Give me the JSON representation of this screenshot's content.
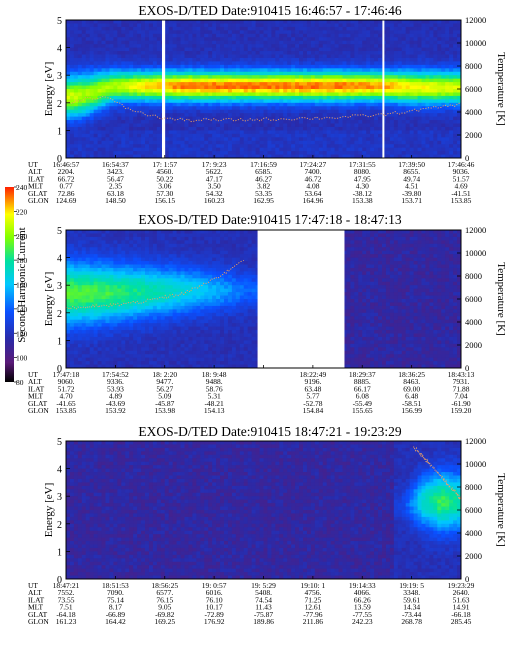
{
  "chart_data": [
    {
      "type": "heatmap",
      "title": "EXOS-D/TED   Date:910415  16:46:57 - 17:46:46",
      "ylabel": "Energy [eV]",
      "y2label": "Temperature [K]",
      "ylim": [
        0,
        5
      ],
      "y2lim": [
        0,
        12000
      ],
      "yticks": [
        "0",
        "1",
        "2",
        "3",
        "4",
        "5"
      ],
      "y2ticks": [
        "0",
        "2000",
        "4000",
        "6000",
        "8000",
        "10000",
        "12000"
      ],
      "data_gaps_fraction": [
        [
          0.243,
          0.251
        ],
        [
          0.801,
          0.806
        ]
      ],
      "band": {
        "x": [
          0,
          0.05,
          0.12,
          0.2,
          0.3,
          0.5,
          0.7,
          0.8,
          0.9,
          1.0
        ],
        "center_eV": [
          2.2,
          2.3,
          2.6,
          2.6,
          2.6,
          2.6,
          2.6,
          2.6,
          2.55,
          2.55
        ],
        "width_eV": [
          0.7,
          0.7,
          0.55,
          0.5,
          0.5,
          0.5,
          0.5,
          0.5,
          0.55,
          0.55
        ],
        "intensity": [
          0.82,
          0.78,
          0.78,
          0.88,
          0.95,
          0.95,
          0.95,
          0.92,
          0.85,
          0.82
        ]
      },
      "temperature_K": {
        "x": [
          0,
          0.05,
          0.1,
          0.15,
          0.2,
          0.25,
          0.3,
          0.4,
          0.5,
          0.6,
          0.7,
          0.8,
          0.9,
          1.0
        ],
        "y": [
          4700,
          5200,
          5300,
          4400,
          3800,
          3450,
          3300,
          3300,
          3350,
          3450,
          3550,
          3750,
          4200,
          4700
        ]
      },
      "orbit": {
        "rows": [
          {
            "label": "UT",
            "values": [
              "16:46:57",
              "16:54:37",
              "17: 1:57",
              "17: 9:23",
              "17:16:59",
              "17:24:27",
              "17:31:55",
              "17:39:50",
              "17:46:46"
            ]
          },
          {
            "label": "ALT",
            "values": [
              "2204.",
              "3423.",
              "4560.",
              "5622.",
              "6585.",
              "7400.",
              "8080.",
              "8655.",
              "9036."
            ]
          },
          {
            "label": "ILAT",
            "values": [
              "66.72",
              "56.47",
              "50.22",
              "47.17",
              "46.27",
              "46.72",
              "47.95",
              "49.74",
              "51.57"
            ]
          },
          {
            "label": "MLT",
            "values": [
              "0.77",
              "2.35",
              "3.06",
              "3.50",
              "3.82",
              "4.08",
              "4.30",
              "4.51",
              "4.69"
            ]
          },
          {
            "label": "GLAT",
            "values": [
              "72.86",
              "63.18",
              "57.30",
              "54.32",
              "53.35",
              "53.64",
              "-38.12",
              "-39.80",
              "-41.51"
            ]
          },
          {
            "label": "GLON",
            "values": [
              "124.69",
              "148.50",
              "156.15",
              "160.23",
              "162.95",
              "164.96",
              "153.38",
              "153.71",
              "153.85"
            ]
          }
        ]
      }
    },
    {
      "type": "heatmap",
      "title": "EXOS-D/TED   Date:910415  17:47:18 - 18:47:13",
      "ylabel": "Energy [eV]",
      "y2label": "Temperature [K]",
      "colorbar_label": "Second Harmonic Current",
      "colorbar_ticks": [
        "80",
        "100",
        "120",
        "140",
        "160",
        "180",
        "200",
        "220",
        "240"
      ],
      "ylim": [
        0,
        5
      ],
      "y2lim": [
        0,
        12000
      ],
      "yticks": [
        "0",
        "1",
        "2",
        "3",
        "4",
        "5"
      ],
      "y2ticks": [
        "0",
        "2000",
        "4000",
        "6000",
        "8000",
        "10000",
        "12000"
      ],
      "data_gaps_fraction": [
        [
          0.485,
          0.705
        ]
      ],
      "band": {
        "x": [
          0,
          0.1,
          0.2,
          0.3,
          0.4,
          0.47
        ],
        "center_eV": [
          2.7,
          2.7,
          2.75,
          2.8,
          2.8,
          2.8
        ],
        "width_eV": [
          1.1,
          1.0,
          0.9,
          0.8,
          0.7,
          0.6
        ],
        "intensity": [
          0.7,
          0.68,
          0.62,
          0.55,
          0.45,
          0.38
        ]
      },
      "temperature_K": {
        "x": [
          0,
          0.1,
          0.2,
          0.3,
          0.35,
          0.4,
          0.45
        ],
        "y": [
          5200,
          5400,
          5800,
          6500,
          7300,
          8200,
          9500
        ]
      },
      "orbit": {
        "rows": [
          {
            "label": "UT",
            "values": [
              "17:47:18",
              "17:54:52",
              "18: 2:20",
              "18: 9:48",
              "",
              "18:22:49",
              "18:29:37",
              "18:36:25",
              "18:43:13"
            ]
          },
          {
            "label": "ALT",
            "values": [
              "9060.",
              "9336.",
              "9477.",
              "9488.",
              "",
              "9196.",
              "8885.",
              "8463.",
              "7931."
            ]
          },
          {
            "label": "ILAT",
            "values": [
              "51.72",
              "53.93",
              "56.27",
              "58.76",
              "",
              "63.48",
              "66.17",
              "69.00",
              "71.88"
            ]
          },
          {
            "label": "MLT",
            "values": [
              "4.70",
              "4.89",
              "5.09",
              "5.31",
              "",
              "5.77",
              "6.08",
              "6.48",
              "7.04"
            ]
          },
          {
            "label": "GLAT",
            "values": [
              "-41.65",
              "-43.69",
              "-45.87",
              "-48.21",
              "",
              "-52.78",
              "-55.49",
              "-58.51",
              "-61.90"
            ]
          },
          {
            "label": "GLON",
            "values": [
              "153.85",
              "153.92",
              "153.98",
              "154.13",
              "",
              "154.84",
              "155.65",
              "156.99",
              "159.20"
            ]
          }
        ]
      }
    },
    {
      "type": "heatmap",
      "title": "EXOS-D/TED   Date:910415  18:47:21 - 19:23:29",
      "ylabel": "Energy [eV]",
      "y2label": "Temperature [K]",
      "ylim": [
        0,
        5
      ],
      "y2lim": [
        0,
        12000
      ],
      "yticks": [
        "0",
        "1",
        "2",
        "3",
        "4",
        "5"
      ],
      "y2ticks": [
        "0",
        "2000",
        "4000",
        "6000",
        "8000",
        "10000",
        "12000"
      ],
      "data_gaps_fraction": [],
      "band": {
        "x": [
          0.85,
          0.9,
          0.95,
          1.0
        ],
        "center_eV": [
          2.7,
          2.8,
          2.8,
          2.8
        ],
        "width_eV": [
          0.5,
          0.9,
          1.0,
          1.0
        ],
        "intensity": [
          0.3,
          0.55,
          0.68,
          0.6
        ]
      },
      "temperature_K": {
        "x": [
          0.88,
          0.92,
          0.96,
          1.0
        ],
        "y": [
          11500,
          10000,
          8500,
          7000
        ]
      },
      "orbit": {
        "rows": [
          {
            "label": "UT",
            "values": [
              "18:47:21",
              "18:51:53",
              "18:56:25",
              "19: 0:57",
              "19: 5:29",
              "19:10: 1",
              "19:14:33",
              "19:19: 5",
              "19:23:29"
            ]
          },
          {
            "label": "ALT",
            "values": [
              "7552.",
              "7090.",
              "6577.",
              "6016.",
              "5408.",
              "4756.",
              "4066.",
              "3348.",
              "2640."
            ]
          },
          {
            "label": "ILAT",
            "values": [
              "73.55",
              "75.14",
              "76.15",
              "76.10",
              "74.54",
              "71.25",
              "66.26",
              "59.61",
              "51.63"
            ]
          },
          {
            "label": "MLT",
            "values": [
              "7.51",
              "8.17",
              "9.05",
              "10.17",
              "11.43",
              "12.61",
              "13.59",
              "14.34",
              "14.91"
            ]
          },
          {
            "label": "GLAT",
            "values": [
              "-64.18",
              "-66.89",
              "-69.82",
              "-72.89",
              "-75.87",
              "-77.96",
              "-77.55",
              "-73.44",
              "-66.18"
            ]
          },
          {
            "label": "GLON",
            "values": [
              "161.23",
              "164.42",
              "169.25",
              "176.92",
              "189.86",
              "211.86",
              "242.23",
              "268.78",
              "285.45"
            ]
          }
        ]
      }
    }
  ]
}
